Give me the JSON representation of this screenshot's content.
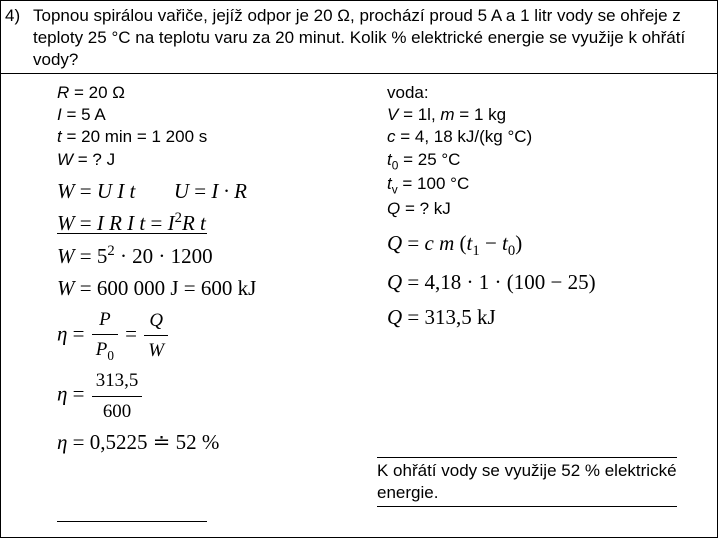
{
  "problem": {
    "number": "4)",
    "text": "Topnou spirálou vařiče, jejíž odpor je 20 Ω, prochází proud 5 A a 1 litr vody se ohřeje z teploty 25 °C na teplotu varu za 20 minut. Kolik % elektrické energie se využije k ohřátí vody?"
  },
  "given_left": {
    "l1": "R = 20 Ω",
    "l2": "I = 5 A",
    "l3": "t = 20 min = 1 200 s",
    "l4": "W = ? J"
  },
  "given_right": {
    "head": "voda:",
    "l1": "V = 1l, m = 1 kg",
    "l2": "c = 4, 18 kJ/(kg °C)",
    "l3_a": "t",
    "l3_b": " = 25 °C",
    "l4_a": "t",
    "l4_b": " = 100 °C",
    "l5": "Q = ? kJ"
  },
  "eq_left": {
    "e1a": "W = U I t",
    "e1b": "U = I · R",
    "e2a": "W = I R I t = I",
    "e2b": "R t",
    "e3a": "W = 5",
    "e3b": " · 20 · 1200",
    "e4": "W = 600 000 J = 600 kJ",
    "e5_lhs": "η =",
    "e5_f1n": "P",
    "e5_f1d": "P",
    "e5_f1d_sub": "0",
    "e5_mid": "=",
    "e5_f2n": "Q",
    "e5_f2d": "W",
    "e6_lhs": "η =",
    "e6_n": "313,5",
    "e6_d": "600",
    "e7": "η = 0,5225 ≐ 52 %"
  },
  "eq_right": {
    "r1a": "Q = c m ",
    "r1b": "(t",
    "r1c": " − t",
    "r1d": ")",
    "r2": "Q = 4,18 · 1 · (100 − 25)",
    "r3": "Q = 313,5 kJ"
  },
  "answer": "K ohřátí vody se využije 52 % elektrické energie."
}
